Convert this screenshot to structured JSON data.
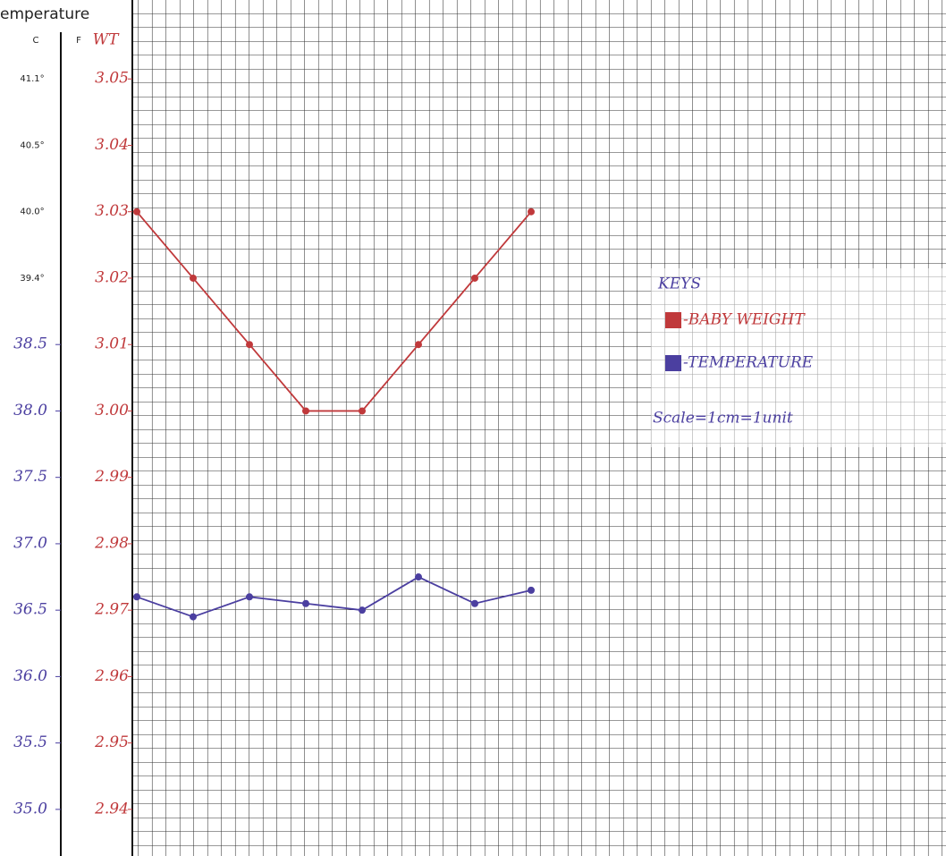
{
  "chart_data": {
    "type": "line",
    "header": "emperature",
    "axis_headers": [
      "C",
      "F",
      "WT"
    ],
    "printed_c_labels": [
      "41.1°",
      "40.5°",
      "40.0°",
      "39.4°"
    ],
    "categories": [
      null,
      null,
      null,
      null,
      null,
      null,
      null,
      null
    ],
    "series": [
      {
        "name": "-BABY WEIGHT",
        "color": "#c0393b",
        "values": [
          3.03,
          3.02,
          3.01,
          3.0,
          3.0,
          3.01,
          3.02,
          3.03
        ]
      },
      {
        "name": "-TEMPERATURE",
        "color": "#4b3fa0",
        "axis": "y2",
        "values": [
          36.6,
          36.45,
          36.6,
          36.55,
          36.5,
          36.75,
          36.55,
          36.65
        ]
      }
    ],
    "ylim": [
      2.935,
      3.06
    ],
    "yticks": [
      3.05,
      3.04,
      3.03,
      3.02,
      3.01,
      {
        "value": 3.0,
        "label": "3.00"
      },
      2.99,
      2.98,
      2.97,
      2.96,
      2.95,
      2.94
    ],
    "y2lim": [
      34.75,
      41.0
    ],
    "y2ticks": [
      38.5,
      {
        "value": 38.0,
        "label": "38.0"
      },
      37.5,
      {
        "value": 37.0,
        "label": "37.0"
      },
      36.5,
      {
        "value": 36.0,
        "label": "36.0"
      },
      35.5,
      {
        "value": 35.0,
        "label": "35.0"
      }
    ],
    "legend_title": "KEYS",
    "scale_note": "Scale=1cm=1unit",
    "legend_position": "right"
  }
}
